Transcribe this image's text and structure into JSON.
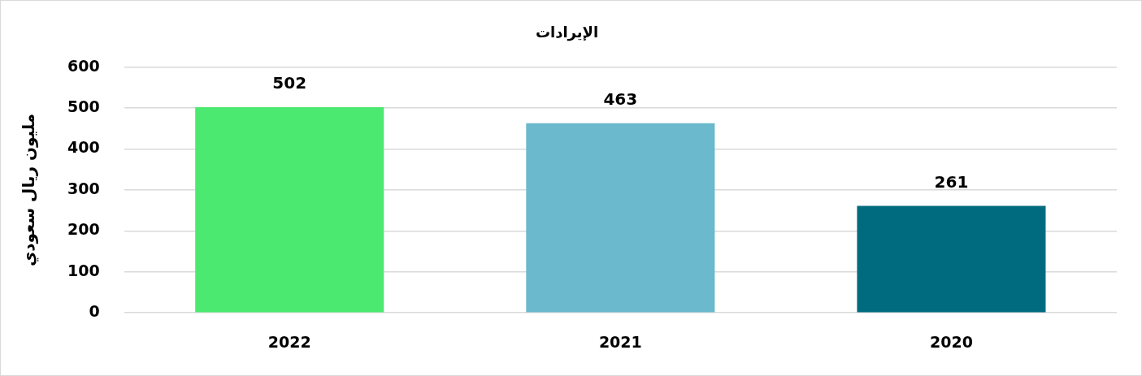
{
  "chart_data": {
    "type": "bar",
    "title": "الإيرادات",
    "ylabel": "مليون ريال سعودي",
    "categories": [
      "2022",
      "2021",
      "2020"
    ],
    "values": [
      502,
      463,
      261
    ],
    "colors": [
      "#4ce970",
      "#6ab9cc",
      "#006b7f"
    ],
    "ylim": [
      0,
      600
    ],
    "yticks": [
      0,
      100,
      200,
      300,
      400,
      500,
      600
    ],
    "grid": "y",
    "legend": false,
    "data_labels": true
  }
}
